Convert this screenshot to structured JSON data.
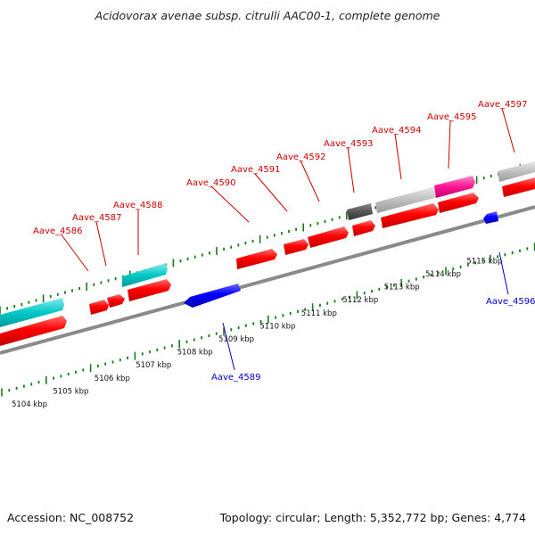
{
  "title": "Acidovorax avenae subsp. citrulli AAC00-1, complete genome",
  "footer": {
    "accession": "Accession: NC_008752",
    "topology": "Topology: circular; Length: 5,352,772 bp; Genes: 4,774"
  },
  "colors": {
    "forward_gene": "#ff0000",
    "reverse_gene": "#0000ff",
    "rna_cyan": "#00c0c0",
    "magenta": "#ff1493",
    "light_gray": "#c0c0c0",
    "dark_gray": "#555555",
    "tick_green": "#1a7a1a",
    "axis_gray": "#808080"
  },
  "kbp_labels": [
    "5104 kbp",
    "5105 kbp",
    "5106 kbp",
    "5107 kbp",
    "5108 kbp",
    "5109 kbp",
    "5110 kbp",
    "5111 kbp",
    "5112 kbp",
    "5113 kbp",
    "5114 kbp",
    "5115 kbp"
  ],
  "gene_labels_top": [
    "Aave_4586",
    "Aave_4587",
    "Aave_4588",
    "Aave_4590",
    "Aave_4591",
    "Aave_4592",
    "Aave_4593",
    "Aave_4594",
    "Aave_4595",
    "Aave_4597"
  ],
  "gene_labels_bottom": [
    "Aave_4589",
    "Aave_4596"
  ]
}
